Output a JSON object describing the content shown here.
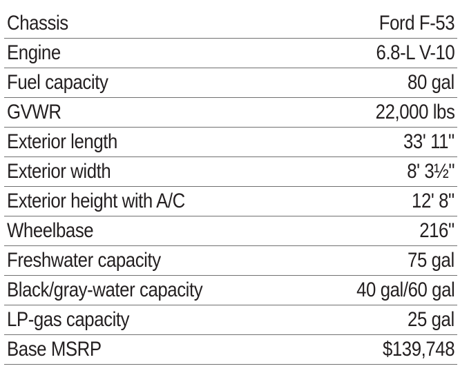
{
  "specs": {
    "rows": [
      {
        "label": "Chassis",
        "value": "Ford F-53"
      },
      {
        "label": "Engine",
        "value": "6.8-L V-10"
      },
      {
        "label": "Fuel capacity",
        "value": "80 gal"
      },
      {
        "label": "GVWR",
        "value": "22,000 lbs"
      },
      {
        "label": "Exterior length",
        "value": "33' 11\""
      },
      {
        "label": "Exterior width",
        "value": "8' 3½\""
      },
      {
        "label": "Exterior height with A/C",
        "value": "12' 8\""
      },
      {
        "label": "Wheelbase",
        "value": "216\""
      },
      {
        "label": "Freshwater capacity",
        "value": "75 gal"
      },
      {
        "label": "Black/gray-water capacity",
        "value": "40 gal/60 gal"
      },
      {
        "label": "LP-gas capacity",
        "value": "25 gal"
      },
      {
        "label": "Base MSRP",
        "value": "$139,748"
      }
    ]
  }
}
